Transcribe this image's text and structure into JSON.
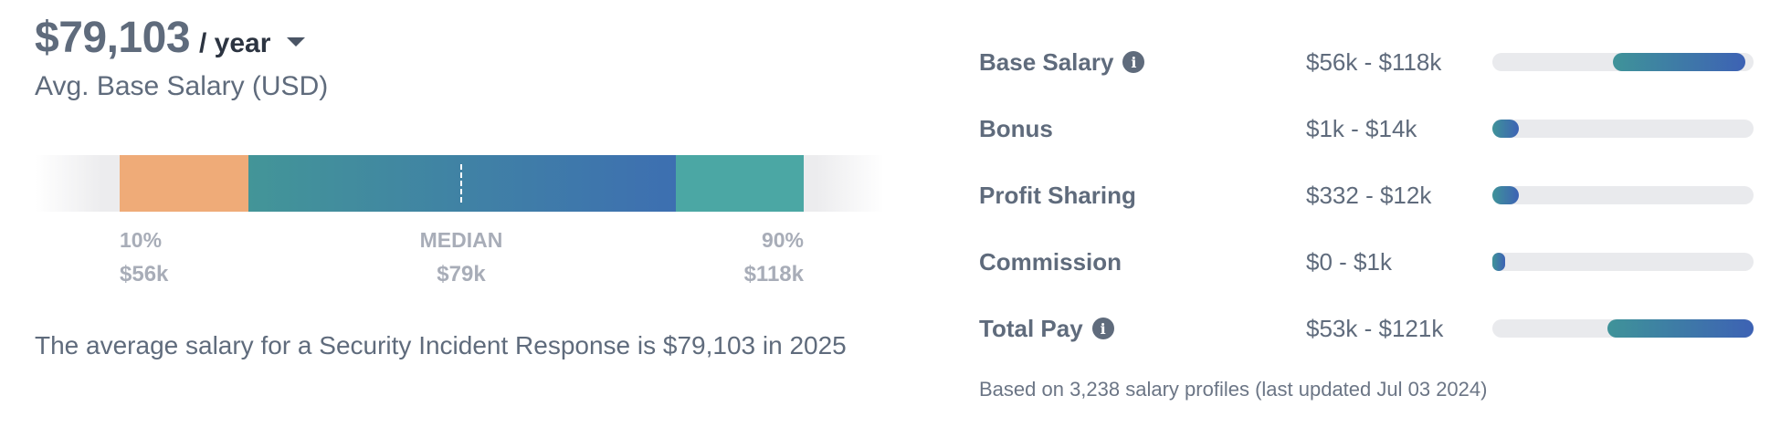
{
  "summary_panel": {
    "amount": "$79,103",
    "period": "/ year",
    "subtitle": "Avg. Base Salary (USD)",
    "percentiles": [
      {
        "label": "10%",
        "value": "$56k"
      },
      {
        "label": "MEDIAN",
        "value": "$79k"
      },
      {
        "label": "90%",
        "value": "$118k"
      }
    ],
    "description": "The average salary for a Security Incident Response is $79,103 in 2025",
    "colors": {
      "low": "#efab78",
      "mid_start": "#439598",
      "mid_end": "#3d6fb1",
      "high": "#4ba7a4"
    }
  },
  "compensation": {
    "rows": [
      {
        "label": "Base Salary",
        "info_icon": "info-icon",
        "range": "$56k - $118k",
        "fill_start": 0.46,
        "fill_end": 0.97
      },
      {
        "label": "Bonus",
        "info_icon": null,
        "range": "$1k - $14k",
        "fill_start": 0.0,
        "fill_end": 0.1
      },
      {
        "label": "Profit Sharing",
        "info_icon": null,
        "range": "$332 - $12k",
        "fill_start": 0.0,
        "fill_end": 0.1
      },
      {
        "label": "Commission",
        "info_icon": null,
        "range": "$0 - $1k",
        "fill_start": 0.0,
        "fill_end": 0.04
      },
      {
        "label": "Total Pay",
        "info_icon": "info-icon",
        "range": "$53k - $121k",
        "fill_start": 0.44,
        "fill_end": 1.0
      }
    ],
    "footnote": "Based on 3,238 salary profiles (last updated Jul 03 2024)"
  }
}
